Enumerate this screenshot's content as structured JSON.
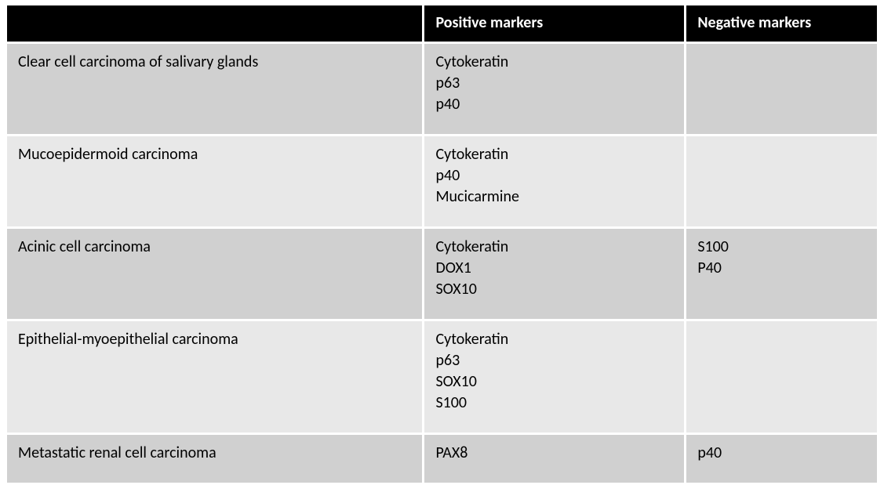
{
  "table": {
    "type": "table",
    "background_color": "#ffffff",
    "header_bg": "#000000",
    "header_fg": "#ffffff",
    "row_odd_bg": "#d0d0d0",
    "row_even_bg": "#e8e8e8",
    "font_family": "Calibri",
    "header_fontsize": 20,
    "cell_fontsize": 20,
    "column_widths_pct": [
      48,
      30,
      22
    ],
    "columns": [
      {
        "label": ""
      },
      {
        "label": "Positive markers"
      },
      {
        "label": "Negative markers"
      }
    ],
    "rows": [
      {
        "name": "Clear cell carcinoma of salivary glands",
        "positive": [
          "Cytokeratin",
          "p63",
          "p40"
        ],
        "negative": []
      },
      {
        "name": "Mucoepidermoid carcinoma",
        "positive": [
          "Cytokeratin",
          "p40",
          "Mucicarmine"
        ],
        "negative": []
      },
      {
        "name": "Acinic cell carcinoma",
        "positive": [
          "Cytokeratin",
          "DOX1",
          "SOX10"
        ],
        "negative": [
          "S100",
          "P40"
        ]
      },
      {
        "name": "Epithelial-myoepithelial carcinoma",
        "positive": [
          "Cytokeratin",
          "p63",
          "SOX10",
          "S100"
        ],
        "negative": []
      },
      {
        "name": "Metastatic renal cell carcinoma",
        "positive": [
          "PAX8"
        ],
        "negative": [
          "p40"
        ]
      }
    ]
  }
}
